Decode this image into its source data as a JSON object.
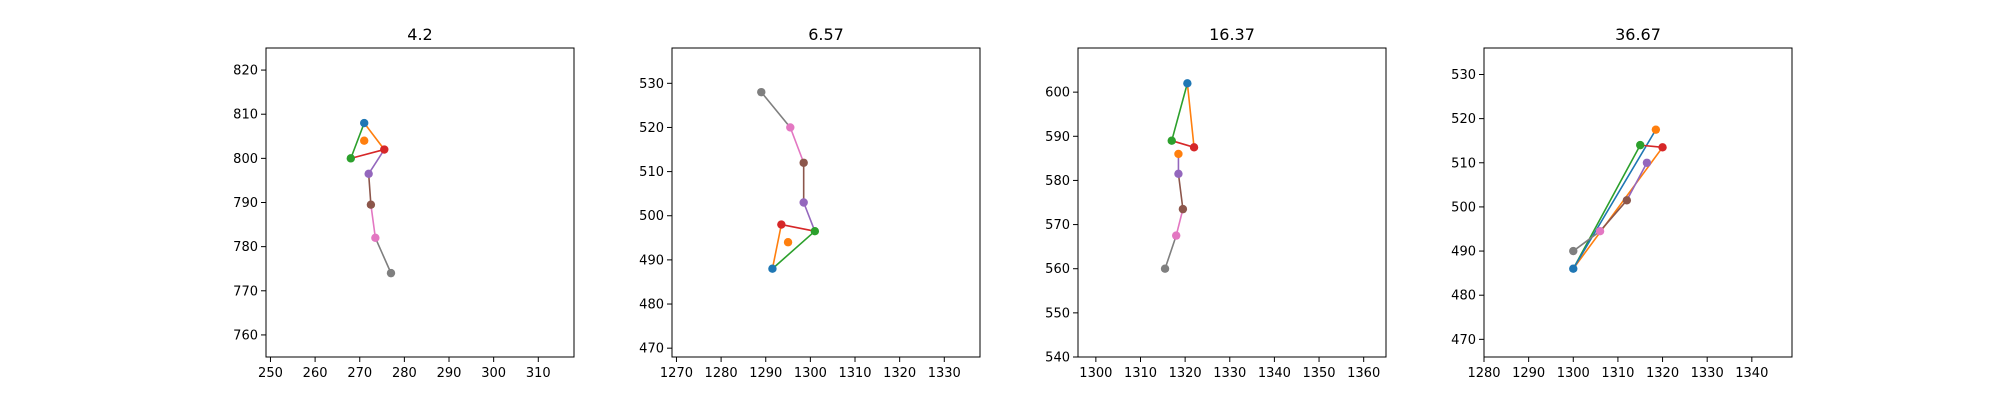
{
  "chart_data": [
    {
      "type": "line",
      "title": "4.2",
      "xlim": [
        249,
        318
      ],
      "ylim": [
        755,
        825
      ],
      "xticks": [
        250,
        260,
        270,
        280,
        290,
        300,
        310
      ],
      "yticks": [
        760,
        770,
        780,
        790,
        800,
        810,
        820
      ],
      "grid": false,
      "points": [
        {
          "name": "p0",
          "color": "#1f77b4",
          "x": 271.0,
          "y": 808.0
        },
        {
          "name": "p1",
          "color": "#ff7f0e",
          "x": 271.0,
          "y": 804.0
        },
        {
          "name": "p2",
          "color": "#2ca02c",
          "x": 268.0,
          "y": 800.0
        },
        {
          "name": "p3",
          "color": "#d62728",
          "x": 275.5,
          "y": 802.0
        },
        {
          "name": "p4",
          "color": "#9467bd",
          "x": 272.0,
          "y": 796.5
        },
        {
          "name": "p5",
          "color": "#8c564b",
          "x": 272.5,
          "y": 789.5
        },
        {
          "name": "p6",
          "color": "#e377c2",
          "x": 273.5,
          "y": 782.0
        },
        {
          "name": "p7",
          "color": "#7f7f7f",
          "x": 277.0,
          "y": 774.0
        }
      ],
      "segments": [
        {
          "from": 0,
          "to": 2,
          "color": "#2ca02c"
        },
        {
          "from": 0,
          "to": 3,
          "color": "#ff7f0e"
        },
        {
          "from": 2,
          "to": 3,
          "color": "#d62728"
        },
        {
          "from": 3,
          "to": 4,
          "color": "#9467bd"
        },
        {
          "from": 4,
          "to": 5,
          "color": "#8c564b"
        },
        {
          "from": 5,
          "to": 6,
          "color": "#e377c2"
        },
        {
          "from": 6,
          "to": 7,
          "color": "#7f7f7f"
        }
      ]
    },
    {
      "type": "line",
      "title": "6.57",
      "xlim": [
        1269,
        1338
      ],
      "ylim": [
        468,
        538
      ],
      "xticks": [
        1270,
        1280,
        1290,
        1300,
        1310,
        1320,
        1330
      ],
      "yticks": [
        470,
        480,
        490,
        500,
        510,
        520,
        530
      ],
      "grid": false,
      "points": [
        {
          "name": "p0",
          "color": "#1f77b4",
          "x": 1291.5,
          "y": 488.0
        },
        {
          "name": "p1",
          "color": "#ff7f0e",
          "x": 1295.0,
          "y": 494.0
        },
        {
          "name": "p2",
          "color": "#2ca02c",
          "x": 1301.0,
          "y": 496.5
        },
        {
          "name": "p3",
          "color": "#d62728",
          "x": 1293.5,
          "y": 498.0
        },
        {
          "name": "p4",
          "color": "#9467bd",
          "x": 1298.5,
          "y": 503.0
        },
        {
          "name": "p5",
          "color": "#8c564b",
          "x": 1298.5,
          "y": 512.0
        },
        {
          "name": "p6",
          "color": "#e377c2",
          "x": 1295.5,
          "y": 520.0
        },
        {
          "name": "p7",
          "color": "#7f7f7f",
          "x": 1289.0,
          "y": 528.0
        }
      ],
      "segments": [
        {
          "from": 0,
          "to": 2,
          "color": "#2ca02c"
        },
        {
          "from": 0,
          "to": 3,
          "color": "#ff7f0e"
        },
        {
          "from": 2,
          "to": 3,
          "color": "#d62728"
        },
        {
          "from": 2,
          "to": 4,
          "color": "#9467bd"
        },
        {
          "from": 4,
          "to": 5,
          "color": "#8c564b"
        },
        {
          "from": 5,
          "to": 6,
          "color": "#e377c2"
        },
        {
          "from": 6,
          "to": 7,
          "color": "#7f7f7f"
        }
      ]
    },
    {
      "type": "line",
      "title": "16.37",
      "xlim": [
        1296,
        1365
      ],
      "ylim": [
        540,
        610
      ],
      "xticks": [
        1300,
        1310,
        1320,
        1330,
        1340,
        1350,
        1360
      ],
      "yticks": [
        540,
        550,
        560,
        570,
        580,
        590,
        600
      ],
      "grid": false,
      "points": [
        {
          "name": "p0",
          "color": "#1f77b4",
          "x": 1320.5,
          "y": 602.0
        },
        {
          "name": "p1",
          "color": "#ff7f0e",
          "x": 1318.5,
          "y": 586.0
        },
        {
          "name": "p2",
          "color": "#2ca02c",
          "x": 1317.0,
          "y": 589.0
        },
        {
          "name": "p3",
          "color": "#d62728",
          "x": 1322.0,
          "y": 587.5
        },
        {
          "name": "p4",
          "color": "#9467bd",
          "x": 1318.5,
          "y": 581.5
        },
        {
          "name": "p5",
          "color": "#8c564b",
          "x": 1319.5,
          "y": 573.5
        },
        {
          "name": "p6",
          "color": "#e377c2",
          "x": 1318.0,
          "y": 567.5
        },
        {
          "name": "p7",
          "color": "#7f7f7f",
          "x": 1315.5,
          "y": 560.0
        }
      ],
      "segments": [
        {
          "from": 0,
          "to": 2,
          "color": "#2ca02c"
        },
        {
          "from": 0,
          "to": 3,
          "color": "#ff7f0e"
        },
        {
          "from": 2,
          "to": 3,
          "color": "#d62728"
        },
        {
          "from": 1,
          "to": 4,
          "color": "#9467bd"
        },
        {
          "from": 4,
          "to": 5,
          "color": "#8c564b"
        },
        {
          "from": 5,
          "to": 6,
          "color": "#e377c2"
        },
        {
          "from": 6,
          "to": 7,
          "color": "#7f7f7f"
        }
      ]
    },
    {
      "type": "line",
      "title": "36.67",
      "xlim": [
        1280,
        1349
      ],
      "ylim": [
        466,
        536
      ],
      "xticks": [
        1280,
        1290,
        1300,
        1310,
        1320,
        1330,
        1340
      ],
      "yticks": [
        470,
        480,
        490,
        500,
        510,
        520,
        530
      ],
      "grid": false,
      "points": [
        {
          "name": "p0",
          "color": "#1f77b4",
          "x": 1300.0,
          "y": 486.0
        },
        {
          "name": "p1",
          "color": "#ff7f0e",
          "x": 1318.5,
          "y": 517.5
        },
        {
          "name": "p2",
          "color": "#2ca02c",
          "x": 1315.0,
          "y": 514.0
        },
        {
          "name": "p3",
          "color": "#d62728",
          "x": 1320.0,
          "y": 513.5
        },
        {
          "name": "p4",
          "color": "#9467bd",
          "x": 1316.5,
          "y": 510.0
        },
        {
          "name": "p5",
          "color": "#8c564b",
          "x": 1312.0,
          "y": 501.5
        },
        {
          "name": "p6",
          "color": "#e377c2",
          "x": 1306.0,
          "y": 494.5
        },
        {
          "name": "p7",
          "color": "#7f7f7f",
          "x": 1300.0,
          "y": 490.0
        }
      ],
      "segments": [
        {
          "from": 0,
          "to": 2,
          "color": "#2ca02c"
        },
        {
          "from": 0,
          "to": 3,
          "color": "#ff7f0e"
        },
        {
          "from": 0,
          "to": 1,
          "color": "#1f77b4"
        },
        {
          "from": 2,
          "to": 3,
          "color": "#d62728"
        },
        {
          "from": 4,
          "to": 5,
          "color": "#9467bd"
        },
        {
          "from": 5,
          "to": 6,
          "color": "#8c564b"
        },
        {
          "from": 6,
          "to": 7,
          "color": "#7f7f7f"
        }
      ]
    }
  ]
}
